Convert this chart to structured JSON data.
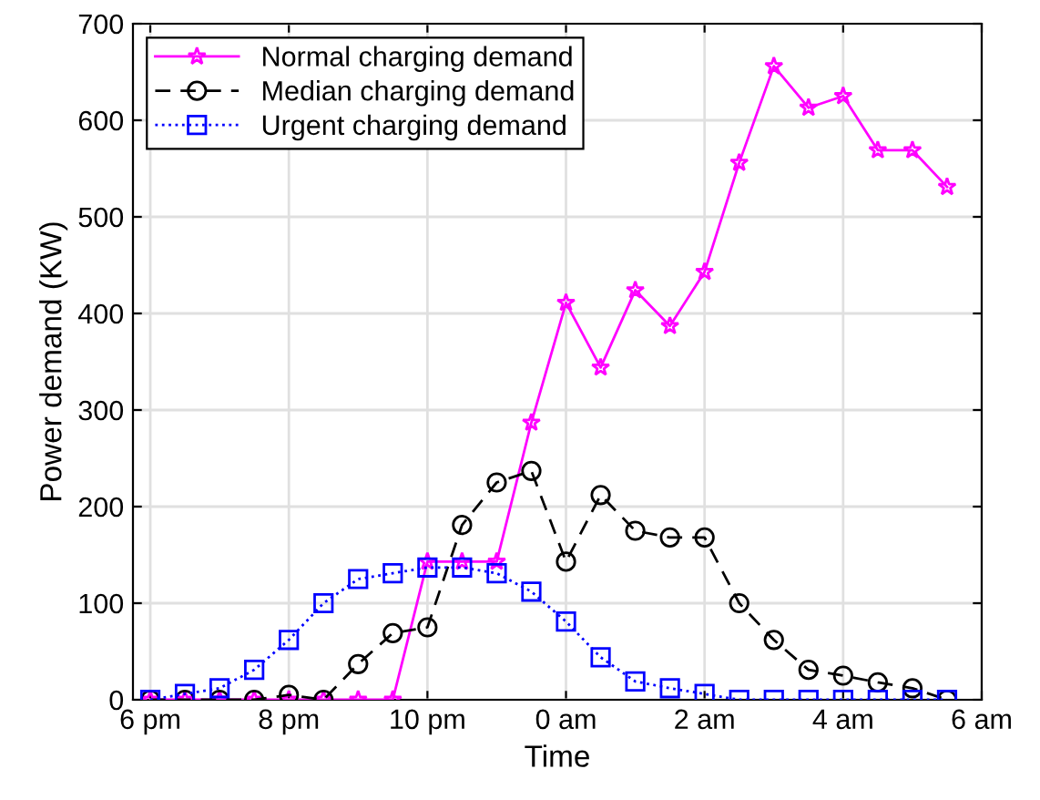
{
  "chart_data": {
    "type": "line",
    "xlabel": "Time",
    "ylabel": "Power demand (KW)",
    "categories": [
      "6 pm",
      null,
      null,
      null,
      "8 pm",
      null,
      null,
      null,
      "10 pm",
      null,
      null,
      null,
      "0 am",
      null,
      null,
      null,
      "2 am",
      null,
      null,
      null,
      "4 am",
      null,
      null,
      null,
      "6 am"
    ],
    "series": [
      {
        "name": "Normal charging demand",
        "color": "#ff00ff",
        "marker": "star",
        "line_style": "solid",
        "values": [
          0,
          0,
          0,
          0,
          0,
          0,
          0,
          0,
          143,
          143,
          143,
          287,
          411,
          344,
          424,
          387,
          443,
          556,
          656,
          613,
          625,
          569,
          569,
          531,
          null
        ]
      },
      {
        "name": "Median charging demand",
        "color": "#000000",
        "marker": "circle",
        "line_style": "dashed",
        "values": [
          0,
          0,
          0,
          0,
          5,
          0,
          37,
          69,
          75,
          181,
          225,
          237,
          143,
          212,
          175,
          168,
          168,
          100,
          62,
          31,
          25,
          18,
          12,
          0,
          null
        ]
      },
      {
        "name": "Urgent charging demand",
        "color": "#0000ff",
        "marker": "square",
        "line_style": "dotted",
        "values": [
          0,
          6,
          12,
          31,
          62,
          100,
          125,
          131,
          137,
          137,
          131,
          112,
          81,
          44,
          19,
          12,
          6,
          0,
          0,
          0,
          0,
          0,
          0,
          0,
          null
        ]
      }
    ],
    "ylim": [
      0,
      700
    ],
    "yticks": [
      0,
      100,
      200,
      300,
      400,
      500,
      600,
      700
    ],
    "grid": true,
    "legend": "top left"
  }
}
